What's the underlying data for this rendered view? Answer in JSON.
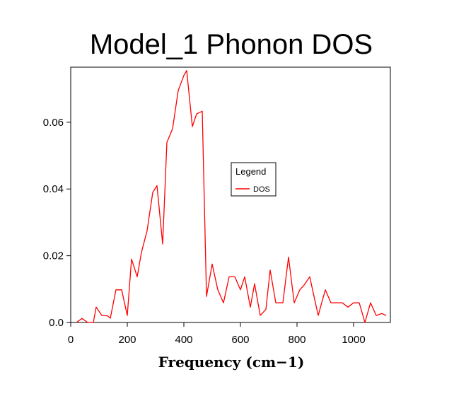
{
  "chart_data": {
    "type": "line",
    "title": "Model_1 Phonon DOS",
    "xlabel": "Frequency (cm−1)",
    "ylabel": "",
    "xlim": [
      0,
      1130
    ],
    "ylim": [
      0,
      0.0765
    ],
    "xticks": [
      0,
      200,
      400,
      600,
      800,
      1000
    ],
    "xtick_labels": [
      "0",
      "200",
      "400",
      "600",
      "800",
      "1000"
    ],
    "yticks": [
      0,
      0.02,
      0.04,
      0.06
    ],
    "ytick_labels": [
      "0.0",
      "0.02",
      "0.04",
      "0.06"
    ],
    "legend": {
      "title": "Legend",
      "placement": "center-right"
    },
    "series": [
      {
        "name": "DOS",
        "color": "#ff0000",
        "x": [
          20,
          40,
          60,
          80,
          90,
          110,
          130,
          140,
          160,
          180,
          200,
          215,
          235,
          250,
          270,
          290,
          305,
          325,
          340,
          360,
          380,
          400,
          410,
          430,
          445,
          465,
          480,
          500,
          520,
          540,
          560,
          580,
          600,
          615,
          635,
          650,
          670,
          690,
          705,
          725,
          750,
          770,
          790,
          810,
          825,
          845,
          865,
          875,
          900,
          920,
          940,
          960,
          980,
          1000,
          1020,
          1040,
          1060,
          1080,
          1100,
          1115
        ],
        "values": [
          0.0,
          0.0012,
          0.0,
          0.0,
          0.0046,
          0.0021,
          0.002,
          0.0013,
          0.0098,
          0.0098,
          0.0021,
          0.019,
          0.0137,
          0.021,
          0.0275,
          0.039,
          0.041,
          0.0235,
          0.054,
          0.058,
          0.0695,
          0.074,
          0.0755,
          0.0587,
          0.0625,
          0.0633,
          0.0078,
          0.0175,
          0.0098,
          0.0059,
          0.0137,
          0.0137,
          0.0098,
          0.0137,
          0.0046,
          0.0116,
          0.0021,
          0.0039,
          0.0157,
          0.0059,
          0.0059,
          0.0196,
          0.0059,
          0.0098,
          0.0112,
          0.0137,
          0.0059,
          0.0021,
          0.0098,
          0.0059,
          0.0059,
          0.0059,
          0.0046,
          0.0059,
          0.0059,
          0.0,
          0.0059,
          0.0021,
          0.0027,
          0.0021
        ]
      }
    ]
  }
}
